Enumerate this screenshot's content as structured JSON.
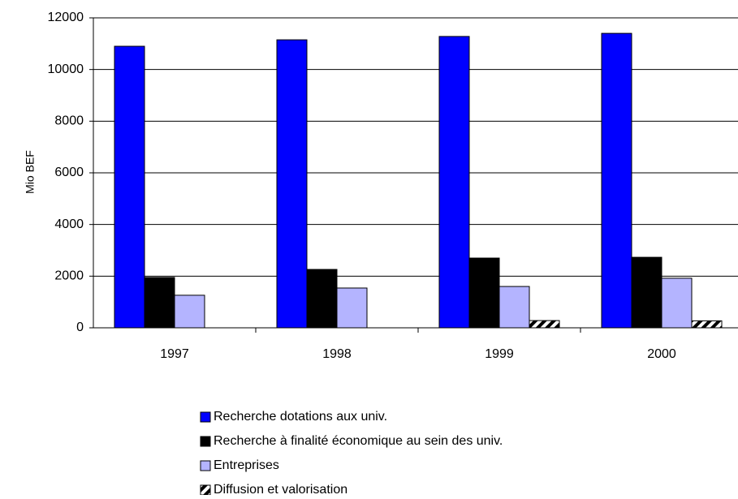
{
  "chart_data": {
    "type": "bar",
    "y_label": "Mio BEF",
    "categories": [
      "1997",
      "1998",
      "1999",
      "2000"
    ],
    "series": [
      {
        "name": "Recherche dotations aux univ.",
        "color": "#0000ff",
        "values": [
          10900,
          11150,
          11280,
          11400
        ]
      },
      {
        "name": "Recherche à finalité économique au sein des univ.",
        "color": "#000000",
        "values": [
          1950,
          2260,
          2700,
          2730
        ]
      },
      {
        "name": "Entreprises",
        "color": "#b4b4ff",
        "values": [
          1260,
          1540,
          1600,
          1920
        ]
      },
      {
        "name": "Diffusion et valorisation",
        "color": "#000000",
        "pattern": "diagonal-hatch",
        "values": [
          null,
          null,
          280,
          270
        ]
      }
    ],
    "ylim": [
      0,
      12000
    ],
    "yticks": [
      0,
      2000,
      4000,
      6000,
      8000,
      10000,
      12000
    ],
    "grid": true
  }
}
